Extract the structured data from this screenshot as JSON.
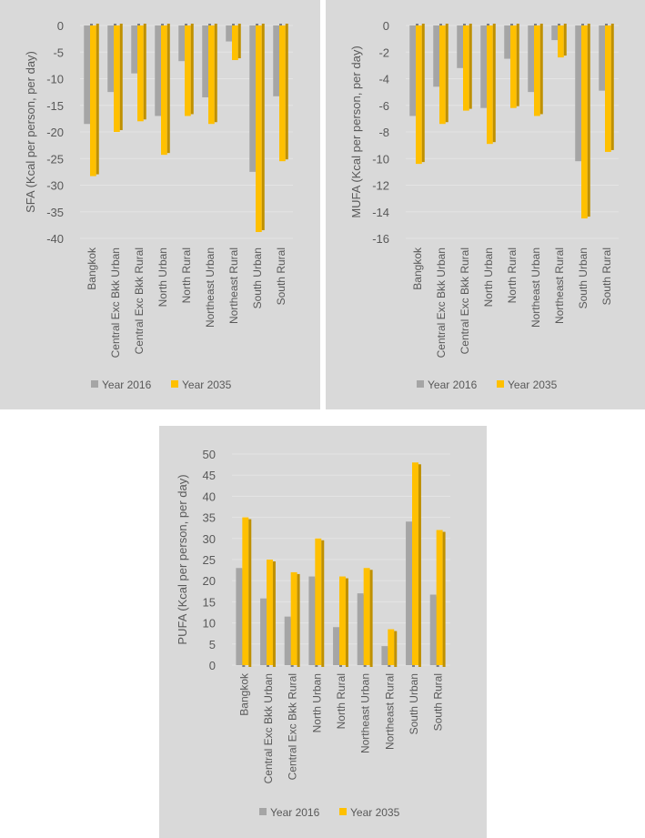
{
  "chart_data": [
    {
      "type": "bar",
      "ylabel": "SFA (Kcal per person, per day)",
      "ylim": [
        -40,
        0
      ],
      "ystep": 5,
      "categories": [
        "Bangkok",
        "Central Exc Bkk Urban",
        "Central Exc Bkk Rural",
        "North Urban",
        "North Rural",
        "Northeast Urban",
        "Northeast Rural",
        "South Urban",
        "South Rural"
      ],
      "series": [
        {
          "name": "Year 2016",
          "color": "#a5a5a5",
          "values": [
            -18.5,
            -12.5,
            -9,
            -17,
            -6.7,
            -13.5,
            -3,
            -27.5,
            -13.3
          ]
        },
        {
          "name": "Year 2035",
          "color": "#ffc000",
          "values": [
            -28.3,
            -20,
            -18,
            -24.3,
            -17,
            -18.5,
            -6.5,
            -38.8,
            -25.5
          ]
        }
      ],
      "grid": true,
      "legend": "bottom"
    },
    {
      "type": "bar",
      "ylabel": "MUFA (Kcal per person, per day)",
      "ylim": [
        -16,
        0
      ],
      "ystep": 2,
      "categories": [
        "Bangkok",
        "Central Exc Bkk Urban",
        "Central Exc Bkk Rural",
        "North Urban",
        "North Rural",
        "Northeast Urban",
        "Northeast Rural",
        "South Urban",
        "South Rural"
      ],
      "series": [
        {
          "name": "Year 2016",
          "color": "#a5a5a5",
          "values": [
            -6.8,
            -4.6,
            -3.2,
            -6.2,
            -2.5,
            -5,
            -1.1,
            -10.2,
            -4.9
          ]
        },
        {
          "name": "Year 2035",
          "color": "#ffc000",
          "values": [
            -10.4,
            -7.4,
            -6.4,
            -8.9,
            -6.2,
            -6.8,
            -2.4,
            -14.5,
            -9.5
          ]
        }
      ],
      "grid": true,
      "legend": "bottom"
    },
    {
      "type": "bar",
      "ylabel": "PUFA (Kcal per person, per day)",
      "ylim": [
        0,
        50
      ],
      "ystep": 5,
      "categories": [
        "Bangkok",
        "Central Exc Bkk Urban",
        "Central Exc Bkk Rural",
        "North Urban",
        "North Rural",
        "Northeast Urban",
        "Northeast Rural",
        "South Urban",
        "South Rural"
      ],
      "series": [
        {
          "name": "Year 2016",
          "color": "#a5a5a5",
          "values": [
            23,
            15.8,
            11.5,
            21,
            9,
            17,
            4.5,
            34,
            16.7
          ]
        },
        {
          "name": "Year 2035",
          "color": "#ffc000",
          "values": [
            35,
            25,
            22,
            30,
            21,
            23,
            8.5,
            48,
            32
          ]
        }
      ],
      "grid": true,
      "legend": "bottom"
    }
  ]
}
